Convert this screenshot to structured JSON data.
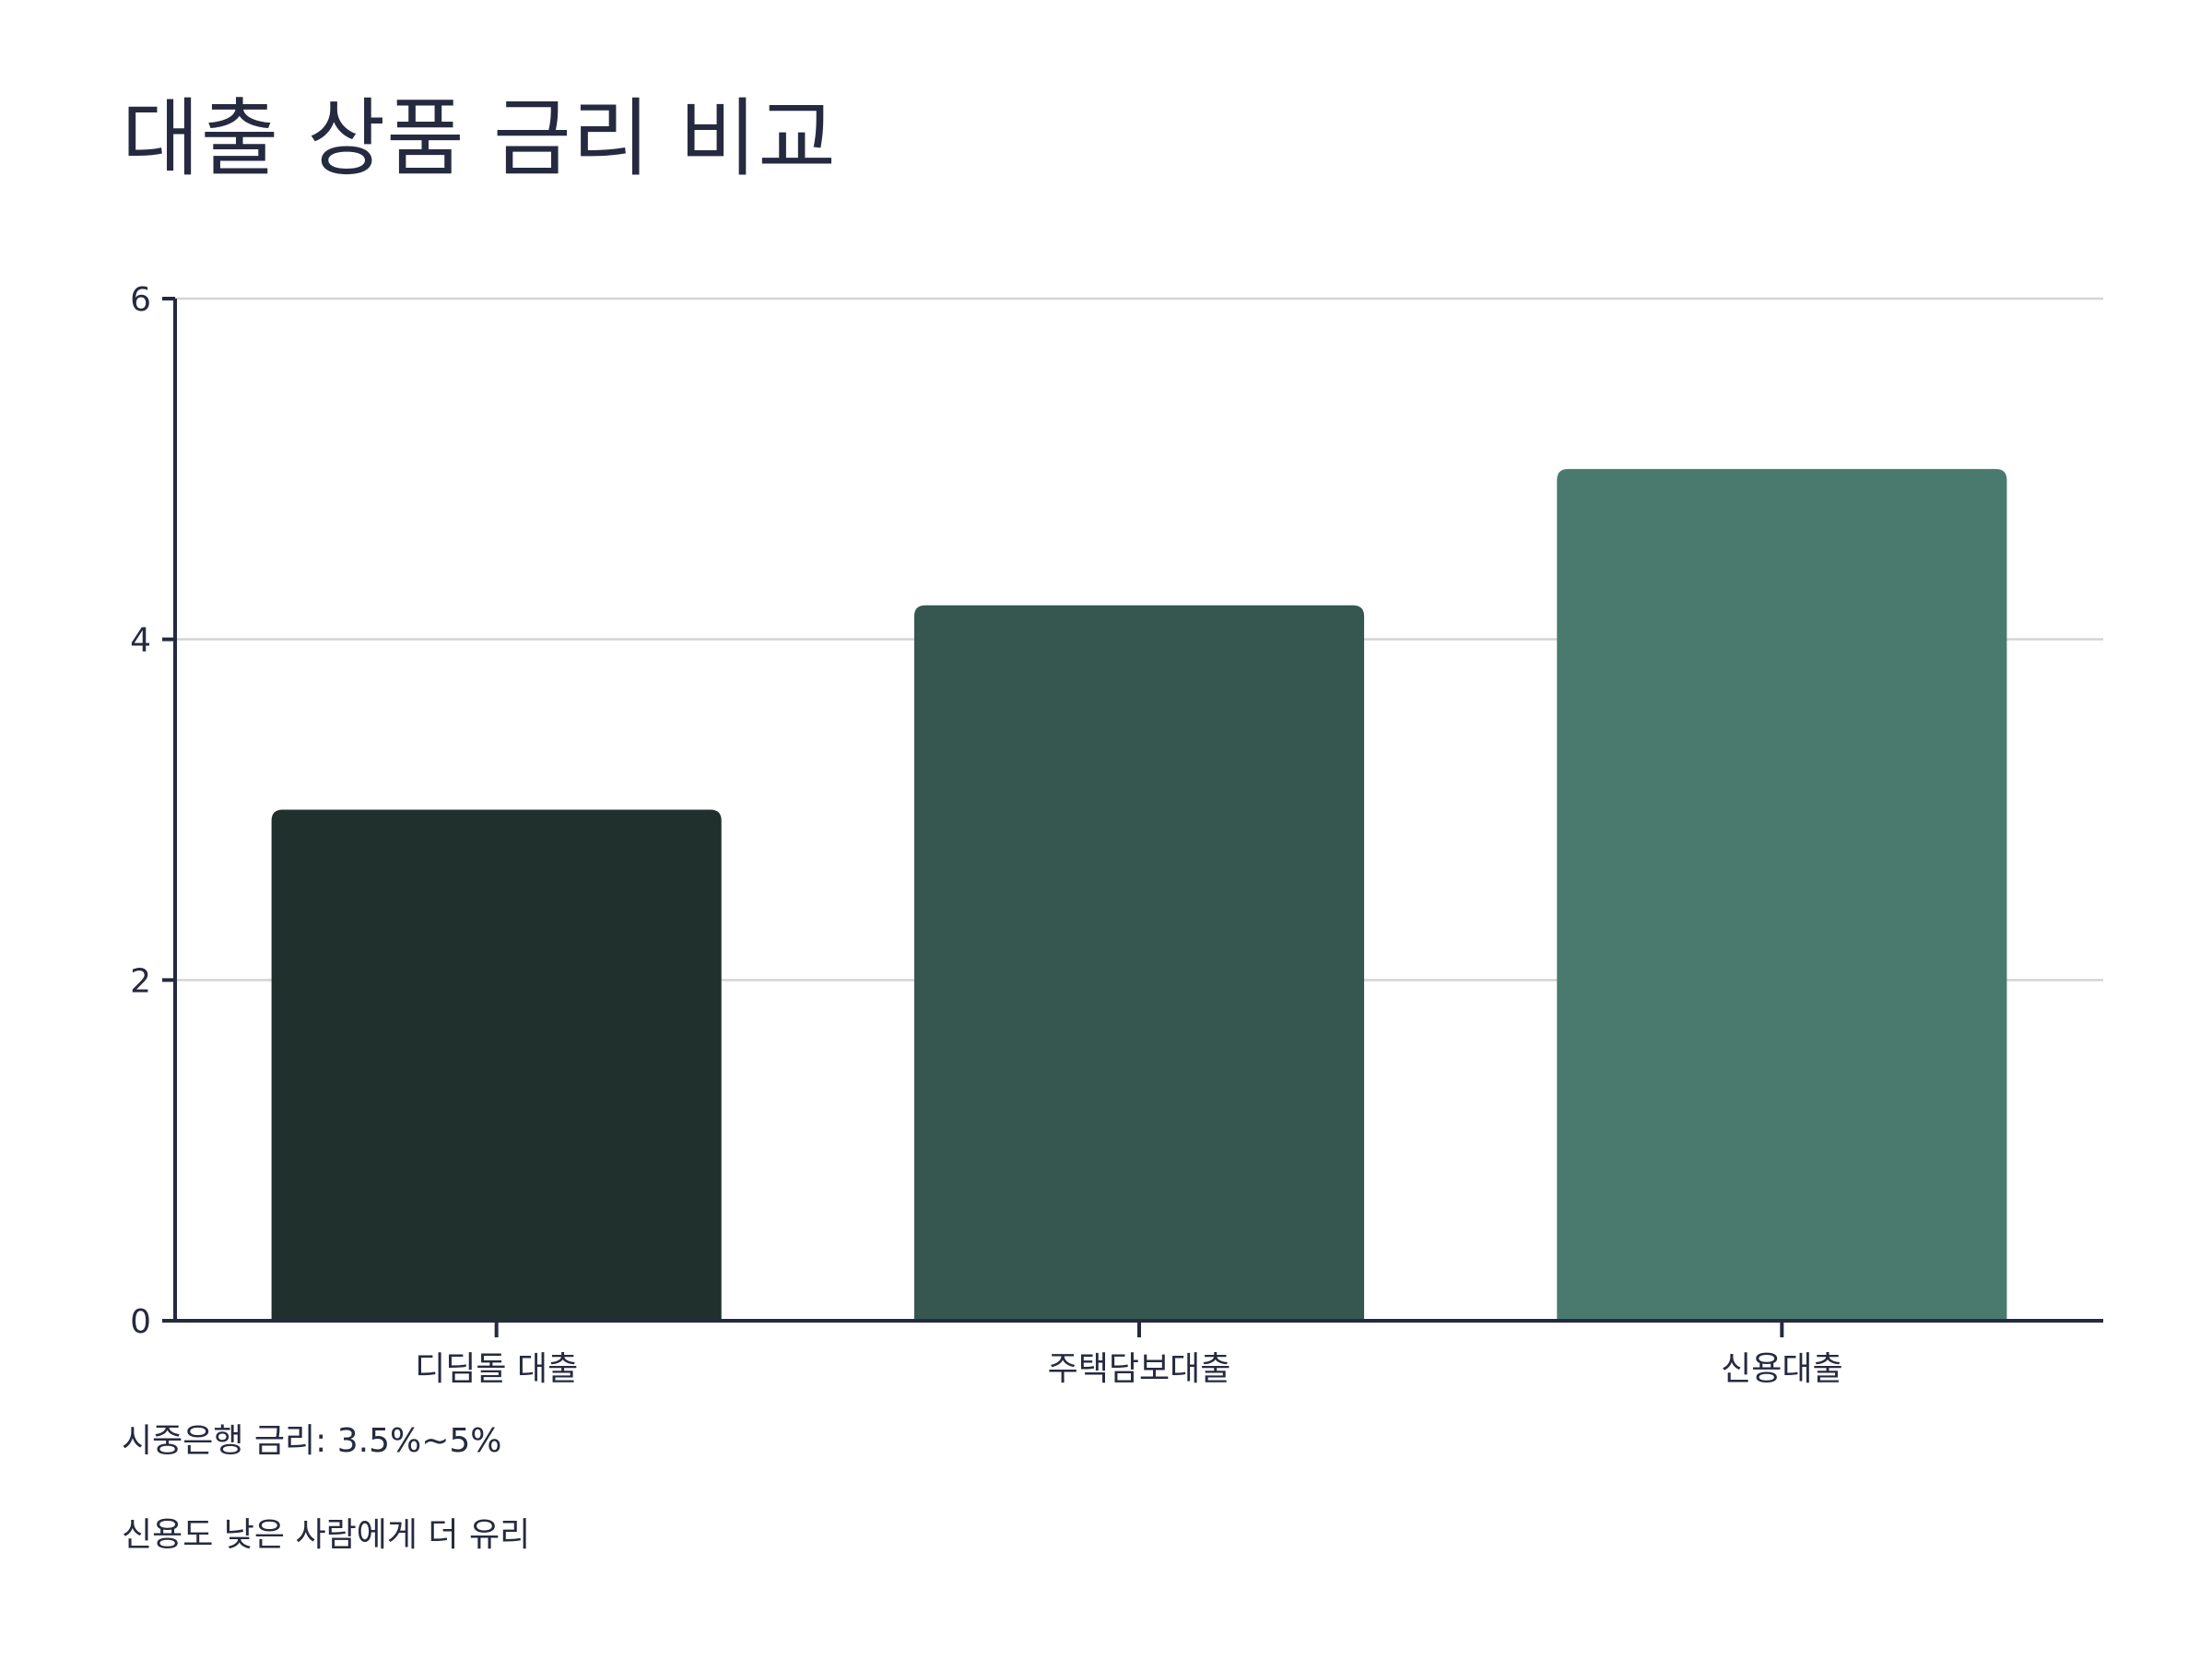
{
  "chart_data": {
    "type": "bar",
    "title": "대출 상품 금리 비교",
    "categories": [
      "디딤돌 대출",
      "주택담보대출",
      "신용대출"
    ],
    "values": [
      3.0,
      4.2,
      5.0
    ],
    "colors": [
      "#1f302d",
      "#365650",
      "#4a7a6e"
    ],
    "xlabel": "",
    "ylabel": "",
    "ylim": [
      0,
      6
    ],
    "yticks": [
      0,
      2,
      4,
      6
    ],
    "grid": true,
    "annotations": [
      "시중은행 금리: 3.5%~5%",
      "신용도 낮은 사람에게 더 유리"
    ]
  }
}
